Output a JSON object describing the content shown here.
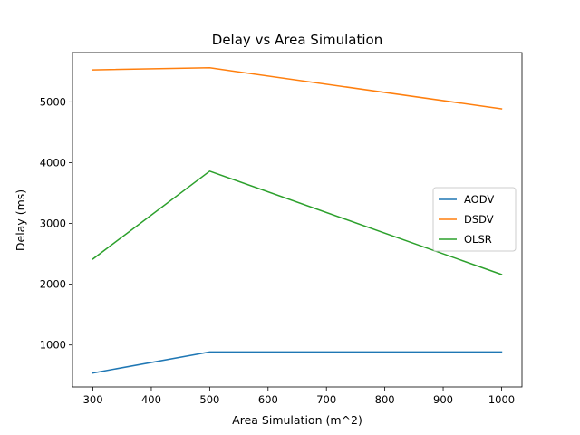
{
  "chart_data": {
    "type": "line",
    "title": "Delay vs Area Simulation",
    "xlabel": "Area Simulation (m^2)",
    "ylabel": "Delay (ms)",
    "x": [
      300,
      500,
      1000
    ],
    "xlim": [
      265,
      1035
    ],
    "ylim": [
      310,
      5810
    ],
    "xticks": [
      300,
      400,
      500,
      600,
      700,
      800,
      900,
      1000
    ],
    "yticks": [
      1000,
      2000,
      3000,
      4000,
      5000
    ],
    "grid": false,
    "legend_position": "center-right",
    "series": [
      {
        "name": "AODV",
        "values": [
          540,
          885,
          885
        ],
        "color": "#1f77b4"
      },
      {
        "name": "DSDV",
        "values": [
          5525,
          5560,
          4885
        ],
        "color": "#ff7f0e"
      },
      {
        "name": "OLSR",
        "values": [
          2415,
          3860,
          2160
        ],
        "color": "#2ca02c"
      }
    ]
  }
}
